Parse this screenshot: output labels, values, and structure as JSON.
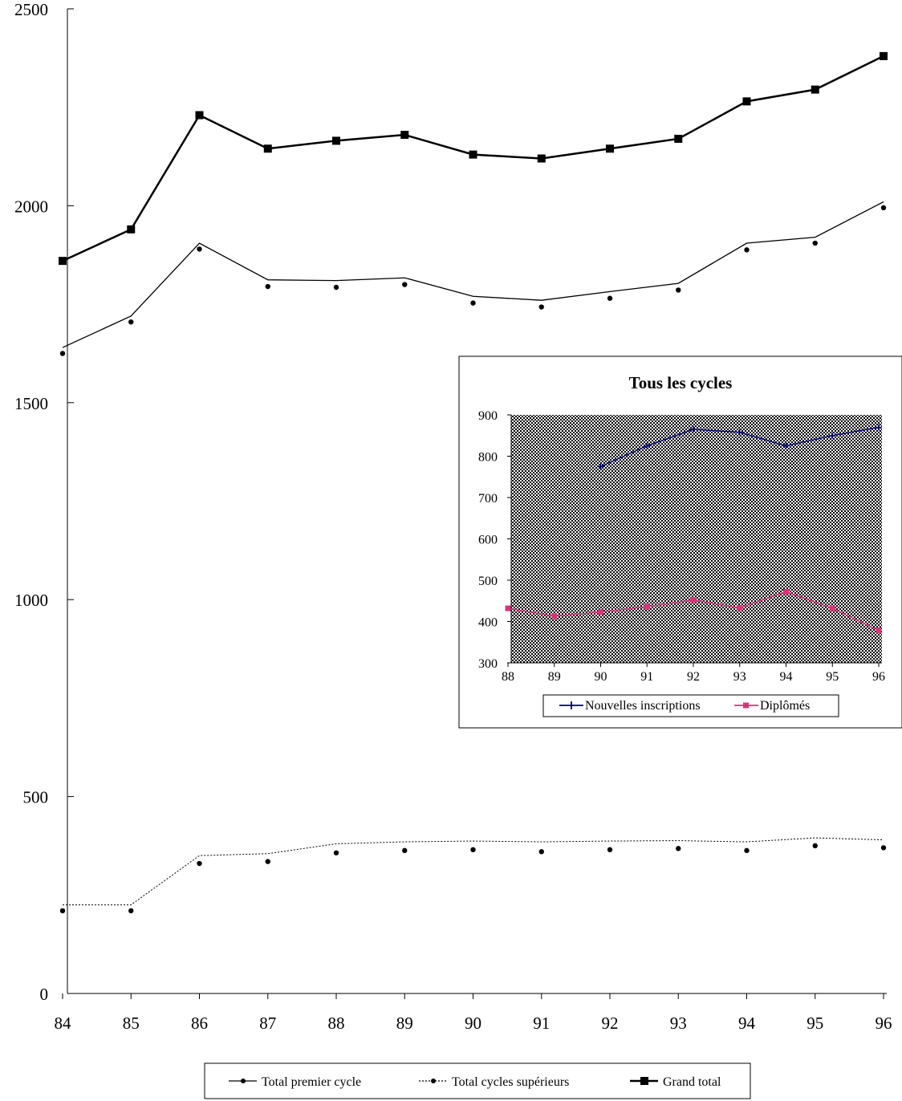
{
  "chart_data": [
    {
      "type": "line",
      "title": "",
      "xlabel": "",
      "ylabel": "",
      "categories": [
        "84",
        "85",
        "86",
        "87",
        "88",
        "89",
        "90",
        "91",
        "92",
        "93",
        "94",
        "95",
        "96"
      ],
      "yticks": [
        "0",
        "500",
        "1000",
        "1500",
        "2000",
        "2500"
      ],
      "ylim": [
        0,
        2500
      ],
      "grid": false,
      "legend_position": "bottom",
      "series": [
        {
          "name": "Total premier cycle",
          "line_values": [
            1640,
            1720,
            1905,
            1812,
            1810,
            1817,
            1770,
            1760,
            1782,
            1803,
            1905,
            1920,
            2010
          ],
          "marker_values": [
            1625,
            1705,
            1890,
            1795,
            1793,
            1800,
            1753,
            1743,
            1765,
            1786,
            1888,
            1905,
            1995
          ],
          "color": "#000000"
        },
        {
          "name": "Total cycles supérieurs",
          "line_values": [
            225,
            225,
            350,
            355,
            380,
            385,
            387,
            385,
            387,
            388,
            385,
            395,
            390
          ],
          "marker_values": [
            210,
            210,
            330,
            335,
            357,
            363,
            365,
            360,
            365,
            368,
            363,
            375,
            370
          ],
          "color": "#000000"
        },
        {
          "name": "Grand total",
          "values": [
            1860,
            1940,
            2230,
            2145,
            2165,
            2180,
            2130,
            2120,
            2145,
            2170,
            2265,
            2295,
            2380
          ],
          "color": "#000000"
        }
      ]
    },
    {
      "type": "line",
      "title": "Tous les cycles",
      "xlabel": "",
      "ylabel": "",
      "categories": [
        "88",
        "89",
        "90",
        "91",
        "92",
        "93",
        "94",
        "95",
        "96"
      ],
      "yticks": [
        "300",
        "400",
        "500",
        "600",
        "700",
        "800",
        "900"
      ],
      "ylim": [
        300,
        900
      ],
      "grid": false,
      "legend_position": "bottom",
      "series": [
        {
          "name": "Nouvelles inscriptions",
          "values": [
            null,
            null,
            775,
            825,
            865,
            858,
            825,
            850,
            870
          ],
          "color": "#000080"
        },
        {
          "name": "Diplômés",
          "values": [
            432,
            413,
            423,
            436,
            452,
            433,
            472,
            432,
            378
          ],
          "color": "#e0307a"
        }
      ]
    }
  ]
}
